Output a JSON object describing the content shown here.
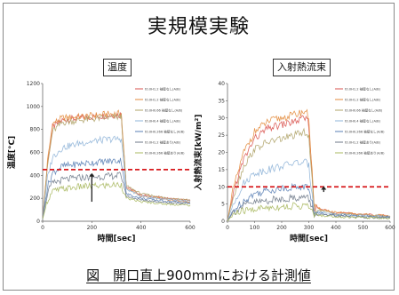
{
  "title": "実規模実験",
  "caption": "図　開口直上900mmにおける計測値",
  "chart_data": [
    {
      "type": "line",
      "panel_title": "温度",
      "xlabel": "時間[sec]",
      "ylabel": "温度[°C]",
      "xlim": [
        0,
        600
      ],
      "ylim": [
        0,
        1200
      ],
      "xticks": [
        0,
        200,
        400,
        600
      ],
      "yticks": [
        0,
        200,
        400,
        600,
        800,
        1000,
        1200
      ],
      "threshold": 450,
      "arrow": {
        "x": 200,
        "y_from": 170,
        "y_to": 420
      },
      "series": [
        {
          "name": "t0.0H1.2 袖壁なし(A/B)",
          "color": "#d9534f",
          "points": [
            [
              0,
              20
            ],
            [
              20,
              500
            ],
            [
              40,
              820
            ],
            [
              80,
              880
            ],
            [
              150,
              900
            ],
            [
              250,
              920
            ],
            [
              320,
              930
            ],
            [
              340,
              300
            ],
            [
              400,
              230
            ],
            [
              500,
              200
            ],
            [
              600,
              180
            ]
          ]
        },
        {
          "name": "t0.0H1.2 袖壁なし(A/B)",
          "color": "#e38b3c",
          "points": [
            [
              0,
              20
            ],
            [
              20,
              520
            ],
            [
              40,
              850
            ],
            [
              80,
              900
            ],
            [
              150,
              910
            ],
            [
              250,
              930
            ],
            [
              320,
              940
            ],
            [
              340,
              290
            ],
            [
              400,
              220
            ],
            [
              500,
              190
            ],
            [
              600,
              170
            ]
          ]
        },
        {
          "name": "t0.0H0.66 袖壁なし(A/B)",
          "color": "#b0a46a",
          "points": [
            [
              0,
              20
            ],
            [
              20,
              480
            ],
            [
              40,
              780
            ],
            [
              80,
              860
            ],
            [
              150,
              880
            ],
            [
              250,
              900
            ],
            [
              320,
              910
            ],
            [
              340,
              310
            ],
            [
              400,
              240
            ],
            [
              500,
              205
            ],
            [
              600,
              185
            ]
          ]
        },
        {
          "name": "t0.0H0.4 袖壁なし(A/B)",
          "color": "#8fb4d8",
          "points": [
            [
              0,
              20
            ],
            [
              20,
              380
            ],
            [
              40,
              560
            ],
            [
              80,
              640
            ],
            [
              150,
              680
            ],
            [
              250,
              710
            ],
            [
              320,
              720
            ],
            [
              340,
              280
            ],
            [
              400,
              220
            ],
            [
              500,
              190
            ],
            [
              600,
              170
            ]
          ]
        },
        {
          "name": "t0.0H0.266 袖壁なし(A/B)",
          "color": "#5a7fb5",
          "points": [
            [
              0,
              20
            ],
            [
              20,
              300
            ],
            [
              40,
              420
            ],
            [
              80,
              480
            ],
            [
              150,
              500
            ],
            [
              250,
              520
            ],
            [
              320,
              530
            ],
            [
              340,
              240
            ],
            [
              400,
              200
            ],
            [
              500,
              175
            ],
            [
              600,
              160
            ]
          ]
        },
        {
          "name": "t0.0H1.2 袖壁あり(A/B)",
          "color": "#6f7a8a",
          "points": [
            [
              0,
              20
            ],
            [
              20,
              250
            ],
            [
              40,
              330
            ],
            [
              80,
              360
            ],
            [
              150,
              380
            ],
            [
              250,
              390
            ],
            [
              320,
              400
            ],
            [
              340,
              220
            ],
            [
              400,
              185
            ],
            [
              500,
              165
            ],
            [
              600,
              150
            ]
          ]
        },
        {
          "name": "t0.0H0.266 袖壁あり(A/B)",
          "color": "#a8b85f",
          "points": [
            [
              0,
              20
            ],
            [
              20,
              180
            ],
            [
              40,
              260
            ],
            [
              80,
              280
            ],
            [
              150,
              300
            ],
            [
              250,
              310
            ],
            [
              320,
              320
            ],
            [
              340,
              200
            ],
            [
              400,
              170
            ],
            [
              500,
              150
            ],
            [
              600,
              140
            ]
          ]
        }
      ]
    },
    {
      "type": "line",
      "panel_title": "入射熱流束",
      "xlabel": "時間[sec]",
      "ylabel": "入射熱流束[kW/m²]",
      "xlim": [
        0,
        600
      ],
      "ylim": [
        0,
        40
      ],
      "xticks": [
        0,
        100,
        200,
        300,
        400,
        500,
        600
      ],
      "yticks": [
        0,
        5,
        10,
        15,
        20,
        25,
        30,
        35,
        40
      ],
      "threshold": 10,
      "arrow": {
        "x": 355,
        "y_from": 8.5,
        "y_to": 10.2
      },
      "series": [
        {
          "name": "t0.0H1.2 袖壁なし(A/B)",
          "color": "#d9534f",
          "points": [
            [
              0,
              0
            ],
            [
              20,
              8
            ],
            [
              60,
              18
            ],
            [
              100,
              24
            ],
            [
              150,
              27
            ],
            [
              200,
              28
            ],
            [
              250,
              29
            ],
            [
              290,
              30
            ],
            [
              300,
              28
            ],
            [
              320,
              4
            ],
            [
              400,
              2.5
            ],
            [
              500,
              2
            ],
            [
              600,
              1.5
            ]
          ]
        },
        {
          "name": "t0.0H1.2 袖壁なし(A/B)",
          "color": "#e38b3c",
          "points": [
            [
              0,
              0
            ],
            [
              20,
              9
            ],
            [
              60,
              20
            ],
            [
              100,
              26
            ],
            [
              150,
              29
            ],
            [
              200,
              30
            ],
            [
              250,
              31
            ],
            [
              290,
              32
            ],
            [
              300,
              30
            ],
            [
              320,
              4
            ],
            [
              400,
              2.5
            ],
            [
              500,
              2
            ],
            [
              600,
              1.5
            ]
          ]
        },
        {
          "name": "t0.0H0.66 袖壁なし(A/B)",
          "color": "#b0a46a",
          "points": [
            [
              0,
              0
            ],
            [
              20,
              7
            ],
            [
              60,
              16
            ],
            [
              100,
              21
            ],
            [
              150,
              23
            ],
            [
              200,
              24
            ],
            [
              250,
              25
            ],
            [
              290,
              26
            ],
            [
              300,
              24
            ],
            [
              320,
              3.5
            ],
            [
              400,
              2.2
            ],
            [
              500,
              1.8
            ],
            [
              600,
              1.4
            ]
          ]
        },
        {
          "name": "t0.0H0.4 袖壁なし(A/B)",
          "color": "#8fb4d8",
          "points": [
            [
              0,
              0
            ],
            [
              20,
              5
            ],
            [
              60,
              11
            ],
            [
              100,
              14
            ],
            [
              150,
              15
            ],
            [
              200,
              16
            ],
            [
              250,
              17
            ],
            [
              290,
              17
            ],
            [
              300,
              16
            ],
            [
              320,
              3
            ],
            [
              400,
              2
            ],
            [
              500,
              1.6
            ],
            [
              600,
              1.3
            ]
          ]
        },
        {
          "name": "t0.0H0.266 袖壁なし(A/B)",
          "color": "#5a7fb5",
          "points": [
            [
              0,
              0
            ],
            [
              20,
              3
            ],
            [
              60,
              6
            ],
            [
              100,
              8
            ],
            [
              150,
              9
            ],
            [
              200,
              9.5
            ],
            [
              250,
              10
            ],
            [
              290,
              10
            ],
            [
              300,
              9.5
            ],
            [
              320,
              2.5
            ],
            [
              400,
              1.8
            ],
            [
              500,
              1.4
            ],
            [
              600,
              1.2
            ]
          ]
        },
        {
          "name": "t0.0H1.2 袖壁あり(A/B)",
          "color": "#6f7a8a",
          "points": [
            [
              0,
              0
            ],
            [
              20,
              2.5
            ],
            [
              60,
              4.5
            ],
            [
              100,
              5.5
            ],
            [
              150,
              6
            ],
            [
              200,
              6.5
            ],
            [
              250,
              6.8
            ],
            [
              290,
              7
            ],
            [
              300,
              6.5
            ],
            [
              320,
              2
            ],
            [
              400,
              1.5
            ],
            [
              500,
              1.2
            ],
            [
              600,
              1
            ]
          ]
        },
        {
          "name": "t0.0H0.266 袖壁あり(A/B)",
          "color": "#a8b85f",
          "points": [
            [
              0,
              0
            ],
            [
              20,
              2
            ],
            [
              60,
              3
            ],
            [
              100,
              3.5
            ],
            [
              150,
              4
            ],
            [
              200,
              4.2
            ],
            [
              250,
              4.4
            ],
            [
              290,
              4.5
            ],
            [
              300,
              4.2
            ],
            [
              320,
              1.8
            ],
            [
              400,
              1.3
            ],
            [
              500,
              1.1
            ],
            [
              600,
              0.9
            ]
          ]
        }
      ]
    }
  ]
}
